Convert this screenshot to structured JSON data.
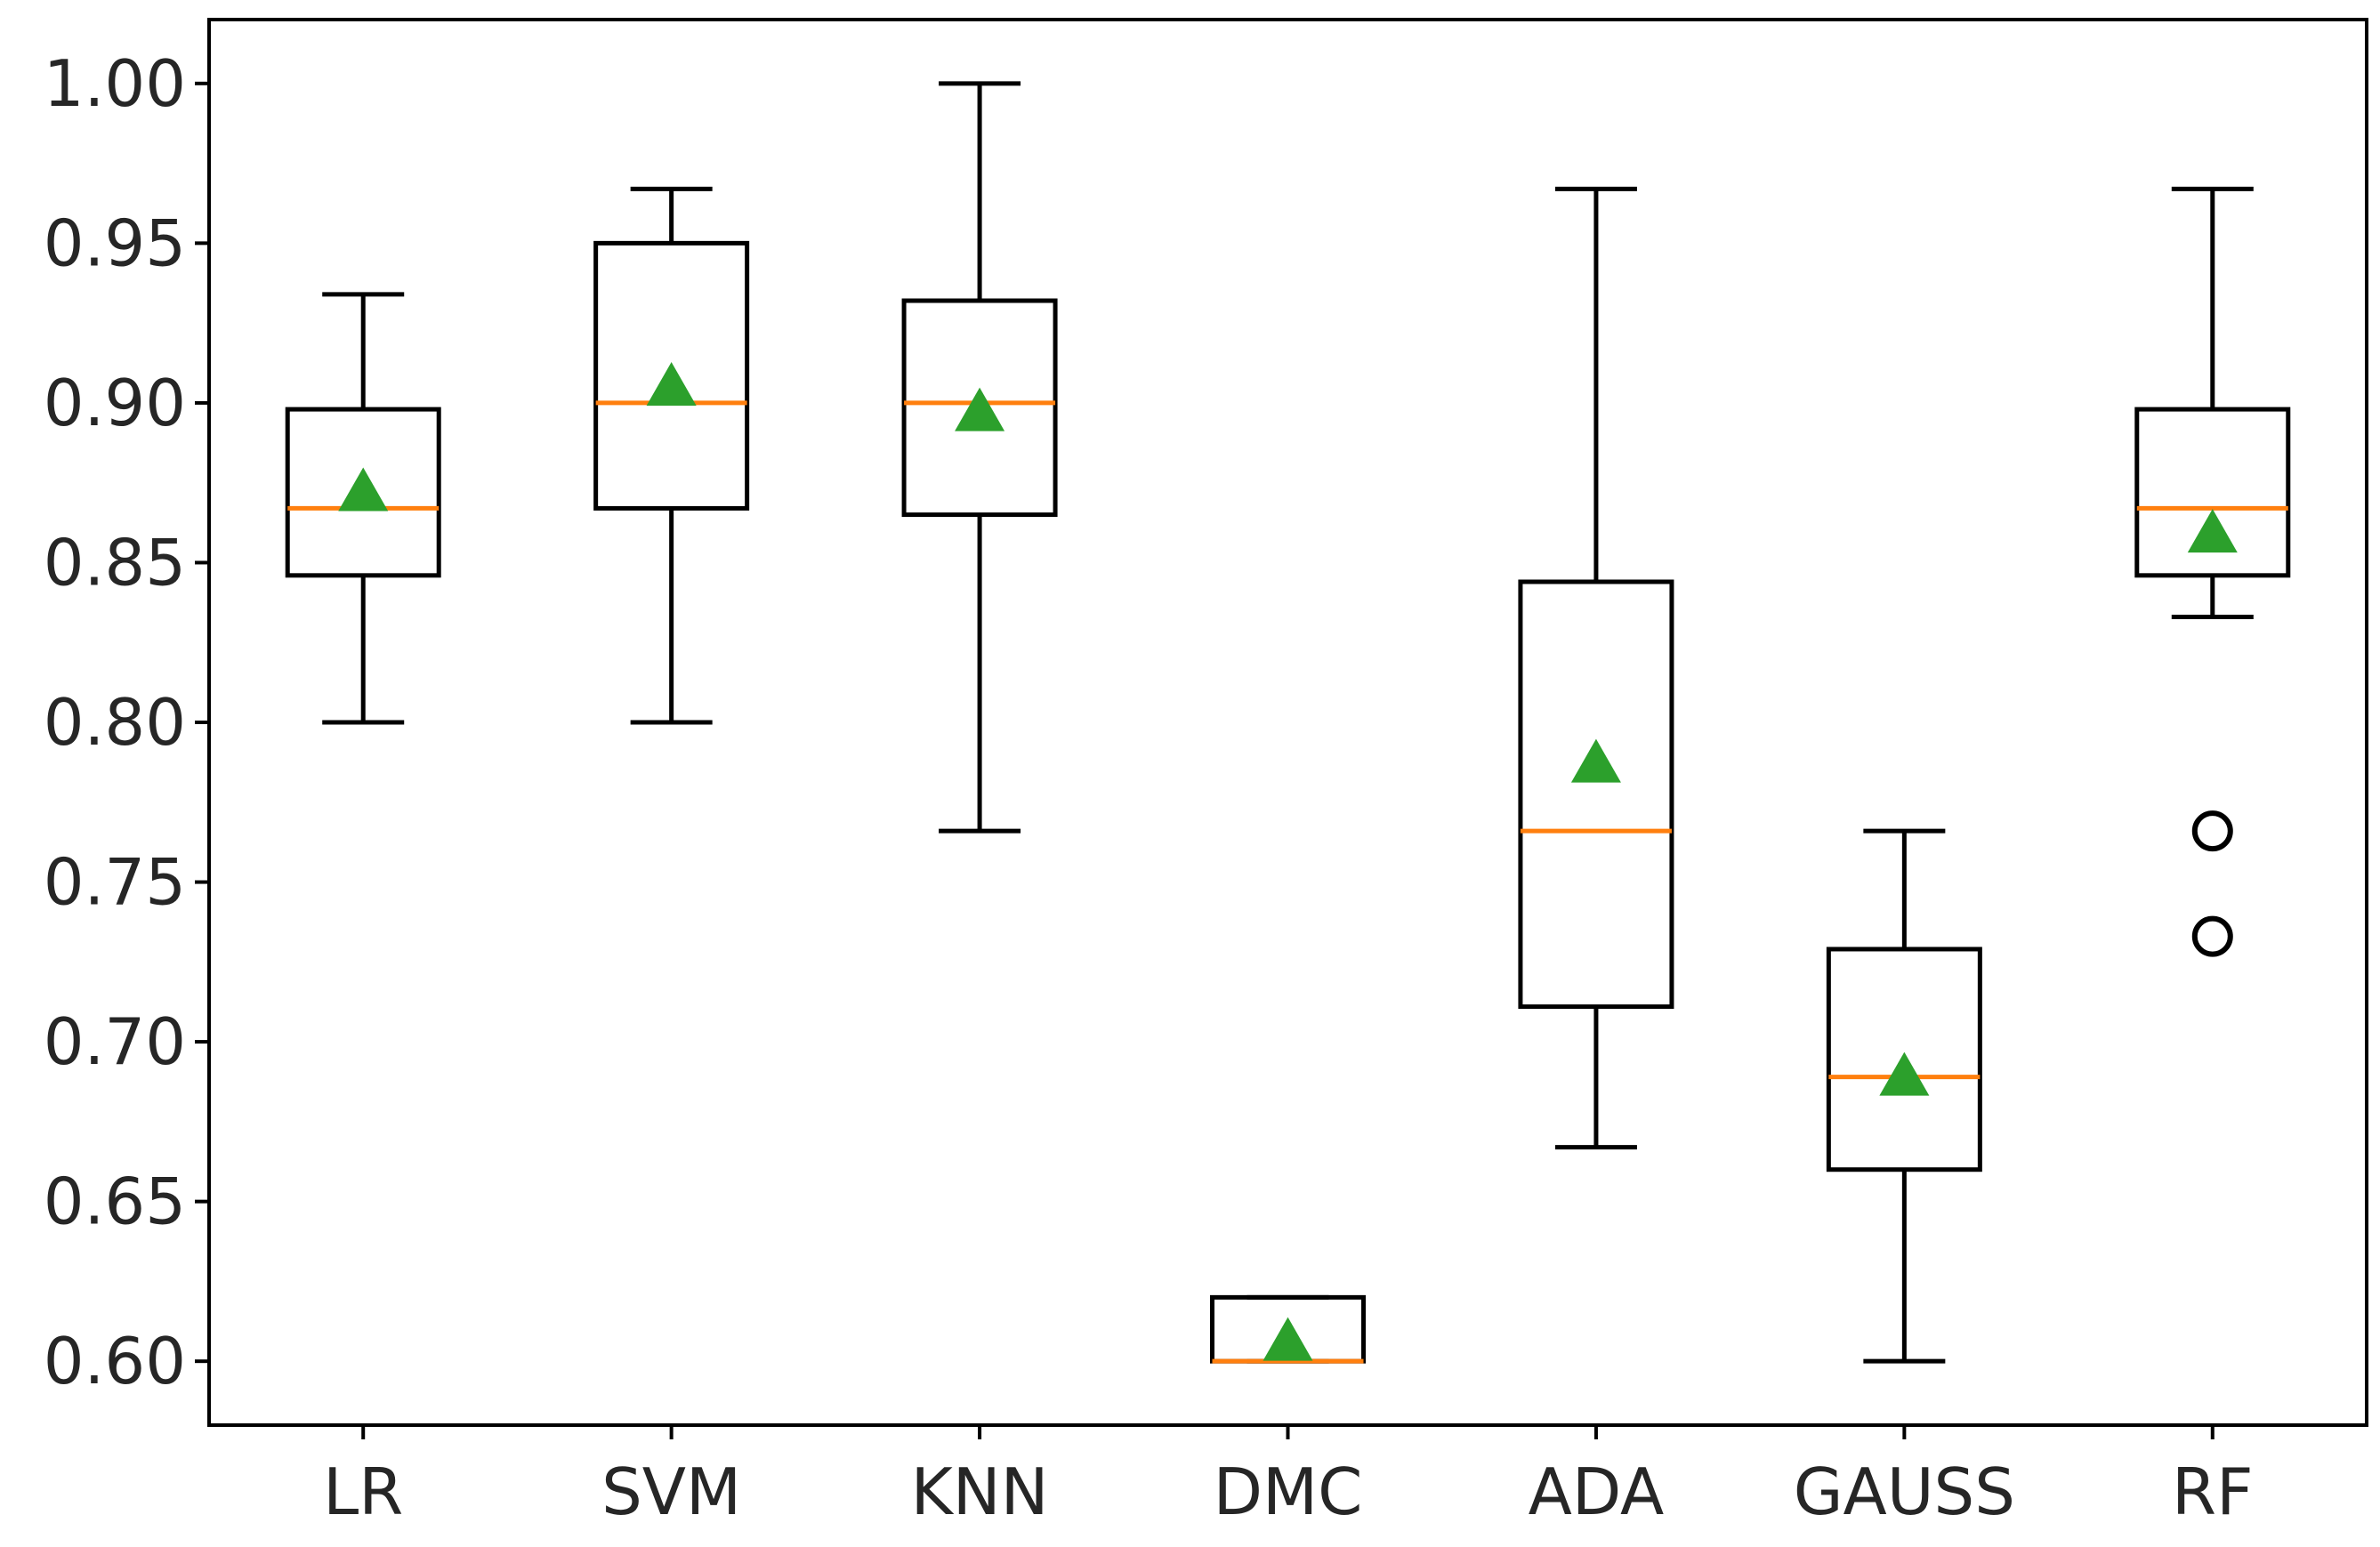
{
  "chart_data": {
    "type": "box",
    "title": "",
    "xlabel": "",
    "ylabel": "",
    "ylim": [
      0.58,
      1.02
    ],
    "yticks": [
      "0.60",
      "0.65",
      "0.70",
      "0.75",
      "0.80",
      "0.85",
      "0.90",
      "0.95",
      "1.00"
    ],
    "categories": [
      "LR",
      "SVM",
      "KNN",
      "DMC",
      "ADA",
      "GAUSS",
      "RF"
    ],
    "boxes": [
      {
        "label": "LR",
        "whisker_low": 0.8,
        "q1": 0.846,
        "median": 0.867,
        "q3": 0.898,
        "whisker_high": 0.934,
        "mean": 0.872,
        "outliers": []
      },
      {
        "label": "SVM",
        "whisker_low": 0.8,
        "q1": 0.867,
        "median": 0.9,
        "q3": 0.95,
        "whisker_high": 0.967,
        "mean": 0.905,
        "outliers": []
      },
      {
        "label": "KNN",
        "whisker_low": 0.766,
        "q1": 0.865,
        "median": 0.9,
        "q3": 0.932,
        "whisker_high": 1.0,
        "mean": 0.897,
        "outliers": []
      },
      {
        "label": "DMC",
        "whisker_low": 0.6,
        "q1": 0.6,
        "median": 0.6,
        "q3": 0.62,
        "whisker_high": 0.62,
        "mean": 0.606,
        "outliers": []
      },
      {
        "label": "ADA",
        "whisker_low": 0.667,
        "q1": 0.711,
        "median": 0.766,
        "q3": 0.844,
        "whisker_high": 0.967,
        "mean": 0.787,
        "outliers": []
      },
      {
        "label": "GAUSS",
        "whisker_low": 0.6,
        "q1": 0.66,
        "median": 0.689,
        "q3": 0.729,
        "whisker_high": 0.766,
        "mean": 0.689,
        "outliers": []
      },
      {
        "label": "RF",
        "whisker_low": 0.833,
        "q1": 0.846,
        "median": 0.867,
        "q3": 0.898,
        "whisker_high": 0.967,
        "mean": 0.859,
        "outliers": [
          0.766,
          0.733
        ]
      }
    ],
    "colors": {
      "box": "#000000",
      "median": "#ff7f0e",
      "mean": "#2ca02c",
      "axis": "#000000",
      "text": "#262626"
    }
  }
}
